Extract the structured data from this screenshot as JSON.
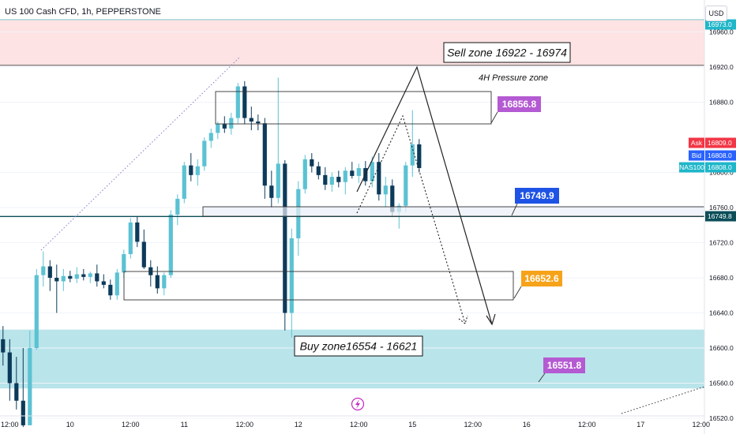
{
  "header": {
    "symbol_title": "US 100 Cash CFD, 1h, PEPPERSTONE",
    "currency": "USD"
  },
  "colors": {
    "up_candle": "#5bc2d3",
    "down_candle": "#0c3a5a",
    "sell_zone_fill": "#fde3e3",
    "buy_zone_fill": "#b9e4ea",
    "purple_label": "#b45ad2",
    "blue_label": "#1e53e5",
    "orange_label": "#f6a31a",
    "ask_color": "#f23645",
    "bid_color": "#2962ff",
    "instrument_color": "#1fb6c9",
    "level_line_color": "#0b4e59"
  },
  "chart_data": {
    "type": "candlestick",
    "title": "US 100 Cash CFD, 1h, PEPPERSTONE",
    "xlabel": "",
    "ylabel": "",
    "ylim": [
      16510,
      16980
    ],
    "y_ticks": [
      16520.0,
      16560.0,
      16600.0,
      16640.0,
      16680.0,
      16720.0,
      16760.0,
      16800.0,
      16880.0,
      16920.0,
      16960.0
    ],
    "x_ticks": [
      {
        "index": 1,
        "label": "12:00"
      },
      {
        "index": 10,
        "label": "10"
      },
      {
        "index": 19,
        "label": "12:00"
      },
      {
        "index": 27,
        "label": "11"
      },
      {
        "index": 36,
        "label": "12:00"
      },
      {
        "index": 44,
        "label": "12"
      },
      {
        "index": 53,
        "label": "12:00"
      },
      {
        "index": 61,
        "label": "15"
      },
      {
        "index": 70,
        "label": "12:00"
      },
      {
        "index": 78,
        "label": "16"
      },
      {
        "index": 87,
        "label": "12:00"
      },
      {
        "index": 95,
        "label": "17"
      },
      {
        "index": 104,
        "label": "12:00"
      }
    ],
    "candles": [
      {
        "o": 16610,
        "h": 16625,
        "l": 16580,
        "c": 16595
      },
      {
        "o": 16595,
        "h": 16610,
        "l": 16540,
        "c": 16560
      },
      {
        "o": 16560,
        "h": 16590,
        "l": 16530,
        "c": 16540
      },
      {
        "o": 16540,
        "h": 16600,
        "l": 16510,
        "c": 16512
      },
      {
        "o": 16512,
        "h": 16620,
        "l": 16512,
        "c": 16600
      },
      {
        "o": 16600,
        "h": 16690,
        "l": 16598,
        "c": 16683
      },
      {
        "o": 16683,
        "h": 16710,
        "l": 16670,
        "c": 16693
      },
      {
        "o": 16693,
        "h": 16700,
        "l": 16665,
        "c": 16680
      },
      {
        "o": 16680,
        "h": 16695,
        "l": 16640,
        "c": 16676
      },
      {
        "o": 16676,
        "h": 16690,
        "l": 16665,
        "c": 16682
      },
      {
        "o": 16682,
        "h": 16688,
        "l": 16675,
        "c": 16679
      },
      {
        "o": 16679,
        "h": 16692,
        "l": 16674,
        "c": 16684
      },
      {
        "o": 16684,
        "h": 16690,
        "l": 16677,
        "c": 16681
      },
      {
        "o": 16681,
        "h": 16687,
        "l": 16674,
        "c": 16685
      },
      {
        "o": 16685,
        "h": 16695,
        "l": 16670,
        "c": 16676
      },
      {
        "o": 16676,
        "h": 16684,
        "l": 16668,
        "c": 16672
      },
      {
        "o": 16672,
        "h": 16678,
        "l": 16655,
        "c": 16660
      },
      {
        "o": 16660,
        "h": 16690,
        "l": 16655,
        "c": 16686
      },
      {
        "o": 16686,
        "h": 16712,
        "l": 16680,
        "c": 16707
      },
      {
        "o": 16707,
        "h": 16748,
        "l": 16702,
        "c": 16743
      },
      {
        "o": 16743,
        "h": 16750,
        "l": 16715,
        "c": 16721
      },
      {
        "o": 16721,
        "h": 16735,
        "l": 16690,
        "c": 16692
      },
      {
        "o": 16692,
        "h": 16700,
        "l": 16670,
        "c": 16683
      },
      {
        "o": 16683,
        "h": 16693,
        "l": 16662,
        "c": 16668
      },
      {
        "o": 16668,
        "h": 16686,
        "l": 16660,
        "c": 16683
      },
      {
        "o": 16683,
        "h": 16757,
        "l": 16680,
        "c": 16752
      },
      {
        "o": 16752,
        "h": 16775,
        "l": 16740,
        "c": 16770
      },
      {
        "o": 16770,
        "h": 16812,
        "l": 16765,
        "c": 16808
      },
      {
        "o": 16808,
        "h": 16822,
        "l": 16790,
        "c": 16797
      },
      {
        "o": 16797,
        "h": 16815,
        "l": 16785,
        "c": 16807
      },
      {
        "o": 16807,
        "h": 16840,
        "l": 16802,
        "c": 16836
      },
      {
        "o": 16836,
        "h": 16850,
        "l": 16828,
        "c": 16845
      },
      {
        "o": 16845,
        "h": 16858,
        "l": 16838,
        "c": 16855
      },
      {
        "o": 16855,
        "h": 16864,
        "l": 16845,
        "c": 16850
      },
      {
        "o": 16850,
        "h": 16868,
        "l": 16843,
        "c": 16862
      },
      {
        "o": 16862,
        "h": 16902,
        "l": 16856,
        "c": 16898
      },
      {
        "o": 16898,
        "h": 16904,
        "l": 16855,
        "c": 16862
      },
      {
        "o": 16862,
        "h": 16875,
        "l": 16848,
        "c": 16858
      },
      {
        "o": 16858,
        "h": 16866,
        "l": 16848,
        "c": 16856
      },
      {
        "o": 16856,
        "h": 16862,
        "l": 16770,
        "c": 16785
      },
      {
        "o": 16785,
        "h": 16802,
        "l": 16760,
        "c": 16771
      },
      {
        "o": 16771,
        "h": 16908,
        "l": 16765,
        "c": 16810
      },
      {
        "o": 16810,
        "h": 16814,
        "l": 16620,
        "c": 16640
      },
      {
        "o": 16640,
        "h": 16736,
        "l": 16612,
        "c": 16725
      },
      {
        "o": 16725,
        "h": 16790,
        "l": 16705,
        "c": 16781
      },
      {
        "o": 16781,
        "h": 16820,
        "l": 16776,
        "c": 16815
      },
      {
        "o": 16815,
        "h": 16822,
        "l": 16800,
        "c": 16807
      },
      {
        "o": 16807,
        "h": 16812,
        "l": 16792,
        "c": 16797
      },
      {
        "o": 16797,
        "h": 16806,
        "l": 16780,
        "c": 16786
      },
      {
        "o": 16786,
        "h": 16800,
        "l": 16778,
        "c": 16795
      },
      {
        "o": 16795,
        "h": 16802,
        "l": 16783,
        "c": 16789
      },
      {
        "o": 16789,
        "h": 16806,
        "l": 16775,
        "c": 16802
      },
      {
        "o": 16802,
        "h": 16812,
        "l": 16793,
        "c": 16796
      },
      {
        "o": 16796,
        "h": 16810,
        "l": 16788,
        "c": 16805
      },
      {
        "o": 16805,
        "h": 16813,
        "l": 16785,
        "c": 16790
      },
      {
        "o": 16790,
        "h": 16818,
        "l": 16783,
        "c": 16812
      },
      {
        "o": 16812,
        "h": 16822,
        "l": 16768,
        "c": 16775
      },
      {
        "o": 16775,
        "h": 16795,
        "l": 16760,
        "c": 16785
      },
      {
        "o": 16785,
        "h": 16792,
        "l": 16750,
        "c": 16755
      },
      {
        "o": 16755,
        "h": 16765,
        "l": 16736,
        "c": 16762
      },
      {
        "o": 16762,
        "h": 16812,
        "l": 16755,
        "c": 16808
      },
      {
        "o": 16808,
        "h": 16871,
        "l": 16795,
        "c": 16832
      },
      {
        "o": 16832,
        "h": 16838,
        "l": 16800,
        "c": 16805
      }
    ],
    "zones": [
      {
        "label": "Sell zone 16922 - 16974",
        "from": 16922,
        "to": 16974
      },
      {
        "label": "Buy zone16554 - 16621",
        "from": 16554,
        "to": 16621
      }
    ],
    "annotations": {
      "pressure_zone": "4H Pressure zone"
    },
    "price_labels": [
      {
        "value": "16856.8",
        "y": 16856.8,
        "color": "purple"
      },
      {
        "value": "16749.9",
        "y": 16749.9,
        "color": "blue"
      },
      {
        "value": "16652.6",
        "y": 16652.6,
        "color": "orange"
      },
      {
        "value": "16551.8",
        "y": 16551.8,
        "color": "purple"
      }
    ],
    "axis_labels": {
      "top_value": "16973.0",
      "ask_label": "Ask",
      "ask_value": "16809.0",
      "bid_label": "Bid",
      "bid_value": "16808.0",
      "instrument_label": "NAS100",
      "instrument_value": "16808.0",
      "level_value": "16749.8"
    }
  }
}
